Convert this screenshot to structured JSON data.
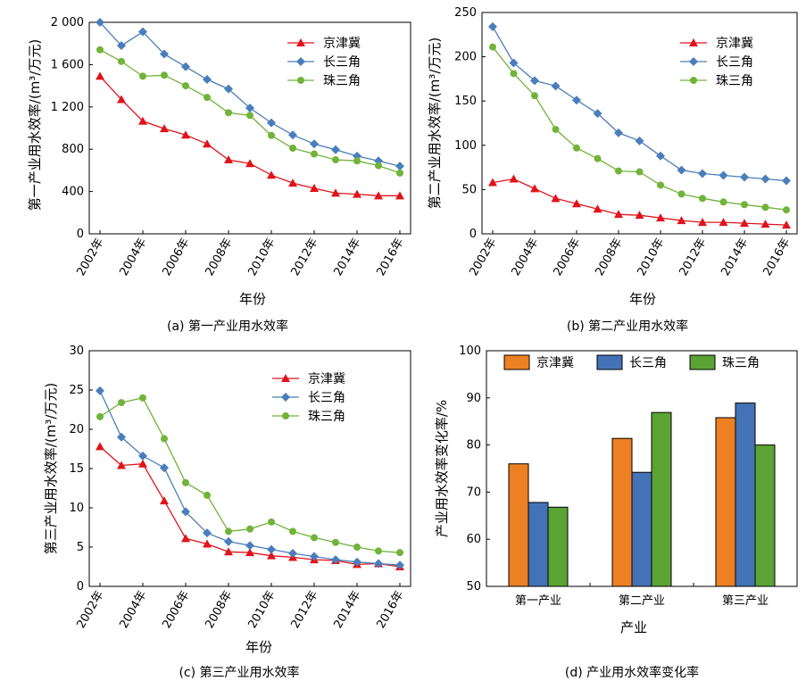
{
  "colors": {
    "jjj": "#e0131b",
    "csj": "#4a7ebb",
    "zsj": "#72b33a",
    "bar_jjj": "#ec8023",
    "bar_csj": "#4472b6",
    "bar_zsj": "#5aa334"
  },
  "chart_data": [
    {
      "id": "a",
      "type": "line",
      "caption": "(a) 第一产业用水效率",
      "xlabel": "年份",
      "ylabel": "第一产业用水效率/(m³/万元)",
      "x": [
        2002,
        2003,
        2004,
        2005,
        2006,
        2007,
        2008,
        2009,
        2010,
        2011,
        2012,
        2013,
        2014,
        2015,
        2016
      ],
      "xticks": [
        "2002年",
        "2004年",
        "2006年",
        "2008年",
        "2010年",
        "2012年",
        "2014年",
        "2016年"
      ],
      "ylim": [
        0,
        2000
      ],
      "yticks": [
        0,
        400,
        800,
        1200,
        1600,
        2000
      ],
      "yticklabels": [
        "0",
        "400",
        "800",
        "1 200",
        "1 600",
        "2 000"
      ],
      "legend": "top-right",
      "series": [
        {
          "name": "京津冀",
          "marker": "triangle",
          "values": [
            1490,
            1270,
            1065,
            995,
            935,
            850,
            700,
            665,
            555,
            480,
            430,
            385,
            375,
            360,
            360
          ]
        },
        {
          "name": "长三角",
          "marker": "diamond",
          "values": [
            2000,
            1780,
            1910,
            1700,
            1580,
            1460,
            1370,
            1190,
            1050,
            935,
            850,
            795,
            735,
            690,
            640
          ]
        },
        {
          "name": "珠三角",
          "marker": "circle",
          "values": [
            1740,
            1630,
            1490,
            1500,
            1400,
            1290,
            1145,
            1120,
            930,
            810,
            755,
            700,
            690,
            645,
            575
          ]
        }
      ]
    },
    {
      "id": "b",
      "type": "line",
      "caption": "(b) 第二产业用水效率",
      "xlabel": "年份",
      "ylabel": "第二产业用水效率/(m³/万元)",
      "x": [
        2002,
        2003,
        2004,
        2005,
        2006,
        2007,
        2008,
        2009,
        2010,
        2011,
        2012,
        2013,
        2014,
        2015,
        2016
      ],
      "xticks": [
        "2002年",
        "2004年",
        "2006年",
        "2008年",
        "2010年",
        "2012年",
        "2014年",
        "2016年"
      ],
      "ylim": [
        0,
        250
      ],
      "yticks": [
        0,
        50,
        100,
        150,
        200,
        250
      ],
      "yticklabels": [
        "0",
        "50",
        "100",
        "150",
        "200",
        "250"
      ],
      "legend": "top-right",
      "series": [
        {
          "name": "京津冀",
          "marker": "triangle",
          "values": [
            58,
            62,
            51,
            40,
            34,
            28,
            22,
            21,
            18,
            15,
            13,
            13,
            12,
            11,
            10
          ]
        },
        {
          "name": "长三角",
          "marker": "diamond",
          "values": [
            234,
            193,
            173,
            167,
            151,
            136,
            114,
            105,
            88,
            72,
            68,
            66,
            64,
            62,
            60
          ]
        },
        {
          "name": "珠三角",
          "marker": "circle",
          "values": [
            211,
            181,
            156,
            118,
            97,
            85,
            71,
            70,
            55,
            45,
            40,
            36,
            33,
            30,
            27
          ]
        }
      ]
    },
    {
      "id": "c",
      "type": "line",
      "caption": "(c) 第三产业用水效率",
      "xlabel": "年份",
      "ylabel": "第三产业用水效率/(m³/万元)",
      "x": [
        2002,
        2003,
        2004,
        2005,
        2006,
        2007,
        2008,
        2009,
        2010,
        2011,
        2012,
        2013,
        2014,
        2015,
        2016
      ],
      "xticks": [
        "2002年",
        "2004年",
        "2006年",
        "2008年",
        "2010年",
        "2012年",
        "2014年",
        "2016年"
      ],
      "ylim": [
        0,
        30
      ],
      "yticks": [
        0,
        5,
        10,
        15,
        20,
        25,
        30
      ],
      "yticklabels": [
        "0",
        "5",
        "10",
        "15",
        "20",
        "25",
        "30"
      ],
      "legend": "top-right",
      "series": [
        {
          "name": "京津冀",
          "marker": "triangle",
          "values": [
            17.8,
            15.4,
            15.6,
            10.9,
            6.1,
            5.4,
            4.4,
            4.3,
            3.9,
            3.7,
            3.4,
            3.3,
            2.8,
            2.9,
            2.5
          ]
        },
        {
          "name": "长三角",
          "marker": "diamond",
          "values": [
            24.9,
            19.0,
            16.6,
            15.1,
            9.5,
            6.8,
            5.7,
            5.2,
            4.7,
            4.2,
            3.8,
            3.4,
            3.1,
            2.9,
            2.7
          ]
        },
        {
          "name": "珠三角",
          "marker": "circle",
          "values": [
            21.6,
            23.4,
            24.0,
            18.8,
            13.2,
            11.6,
            7.0,
            7.3,
            8.2,
            7.0,
            6.2,
            5.6,
            5.0,
            4.5,
            4.3
          ]
        }
      ]
    },
    {
      "id": "d",
      "type": "bar",
      "caption": "(d) 产业用水效率变化率",
      "xlabel": "产业",
      "ylabel": "产业用水效率变化率/%",
      "categories": [
        "第一产业",
        "第二产业",
        "第三产业"
      ],
      "ylim": [
        50,
        100
      ],
      "yticks": [
        50,
        60,
        70,
        80,
        90,
        100
      ],
      "yticklabels": [
        "50",
        "60",
        "70",
        "80",
        "90",
        "100"
      ],
      "legend": "top",
      "series": [
        {
          "name": "京津冀",
          "values": [
            76.0,
            81.4,
            85.8
          ]
        },
        {
          "name": "长三角",
          "values": [
            67.8,
            74.2,
            88.9
          ]
        },
        {
          "name": "珠三角",
          "values": [
            66.8,
            86.9,
            80.0
          ]
        }
      ]
    }
  ]
}
